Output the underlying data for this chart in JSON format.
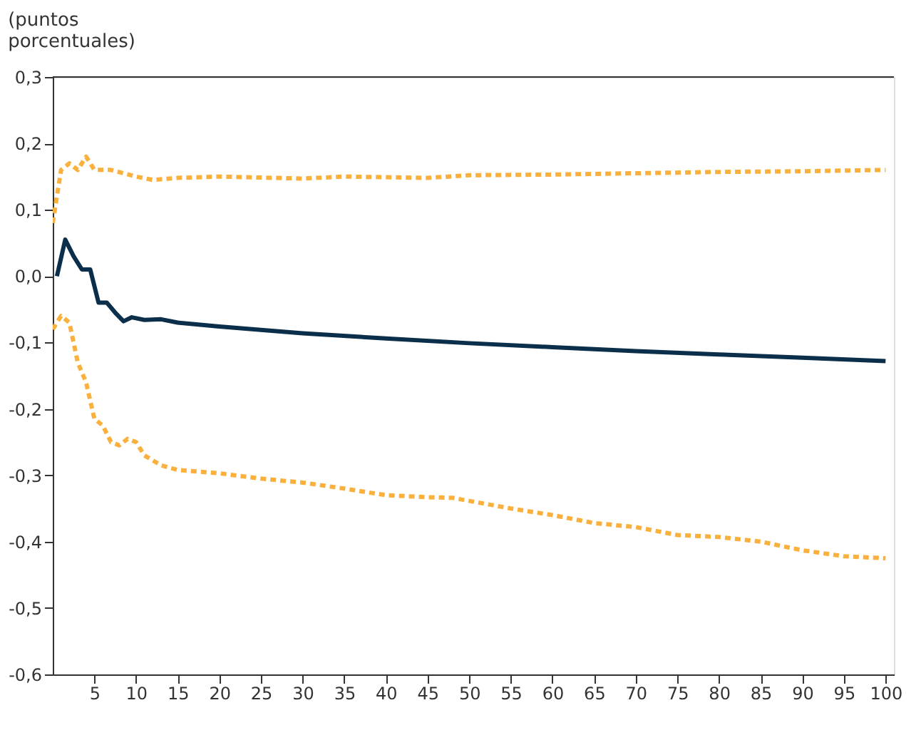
{
  "chart_data": {
    "type": "line",
    "ylabel": "(puntos porcentuales)",
    "xlim": [
      0,
      101
    ],
    "xticks": [
      5,
      10,
      15,
      20,
      25,
      30,
      35,
      40,
      45,
      50,
      55,
      60,
      65,
      70,
      75,
      80,
      85,
      90,
      95,
      100
    ],
    "ylim": [
      -0.6,
      0.3
    ],
    "yticks": [
      {
        "value": -0.6,
        "label": "-0,6"
      },
      {
        "value": -0.5,
        "label": "-0,5"
      },
      {
        "value": -0.4,
        "label": "-0,4"
      },
      {
        "value": -0.3,
        "label": "-0,3"
      },
      {
        "value": -0.2,
        "label": "-0,2"
      },
      {
        "value": -0.1,
        "label": "-0,1"
      },
      {
        "value": 0,
        "label": "0,0"
      },
      {
        "value": 0.1,
        "label": "0,1"
      },
      {
        "value": 0.2,
        "label": "0,2"
      },
      {
        "value": 0.3,
        "label": "0,3"
      }
    ],
    "grid": false,
    "series": [
      {
        "color": "#0b2f4a",
        "line_style": "solid",
        "x": [
          0.5,
          1.5,
          2.5,
          3.5,
          4.5,
          5.5,
          6.5,
          7.5,
          8.5,
          9.5,
          11,
          13,
          15,
          20,
          30,
          40,
          50,
          60,
          70,
          80,
          90,
          100
        ],
        "values": [
          0.0,
          0.055,
          0.03,
          0.01,
          0.01,
          -0.04,
          -0.04,
          -0.055,
          -0.068,
          -0.062,
          -0.066,
          -0.065,
          -0.07,
          -0.076,
          -0.086,
          -0.094,
          -0.101,
          -0.107,
          -0.113,
          -0.118,
          -0.123,
          -0.128
        ]
      },
      {
        "color": "#f9b03d",
        "line_style": "dashed",
        "x": [
          0,
          1,
          2,
          3,
          4,
          5,
          7,
          10,
          12,
          15,
          20,
          30,
          35,
          45,
          50,
          60,
          70,
          80,
          90,
          100
        ],
        "values": [
          0.08,
          0.16,
          0.17,
          0.16,
          0.18,
          0.16,
          0.16,
          0.15,
          0.145,
          0.148,
          0.15,
          0.147,
          0.15,
          0.148,
          0.152,
          0.153,
          0.155,
          0.157,
          0.158,
          0.16
        ]
      },
      {
        "color": "#f9b03d",
        "line_style": "dashed",
        "x": [
          0,
          1,
          2,
          3,
          4,
          5,
          6,
          7,
          8,
          9,
          10,
          11,
          13,
          15,
          20,
          25,
          30,
          35,
          40,
          45,
          48,
          55,
          60,
          65,
          70,
          75,
          80,
          85,
          90,
          95,
          100
        ],
        "values": [
          -0.08,
          -0.06,
          -0.07,
          -0.13,
          -0.16,
          -0.215,
          -0.225,
          -0.25,
          -0.255,
          -0.245,
          -0.25,
          -0.27,
          -0.285,
          -0.292,
          -0.297,
          -0.305,
          -0.311,
          -0.32,
          -0.33,
          -0.333,
          -0.334,
          -0.35,
          -0.36,
          -0.372,
          -0.378,
          -0.39,
          -0.393,
          -0.4,
          -0.413,
          -0.422,
          -0.425
        ]
      }
    ]
  }
}
